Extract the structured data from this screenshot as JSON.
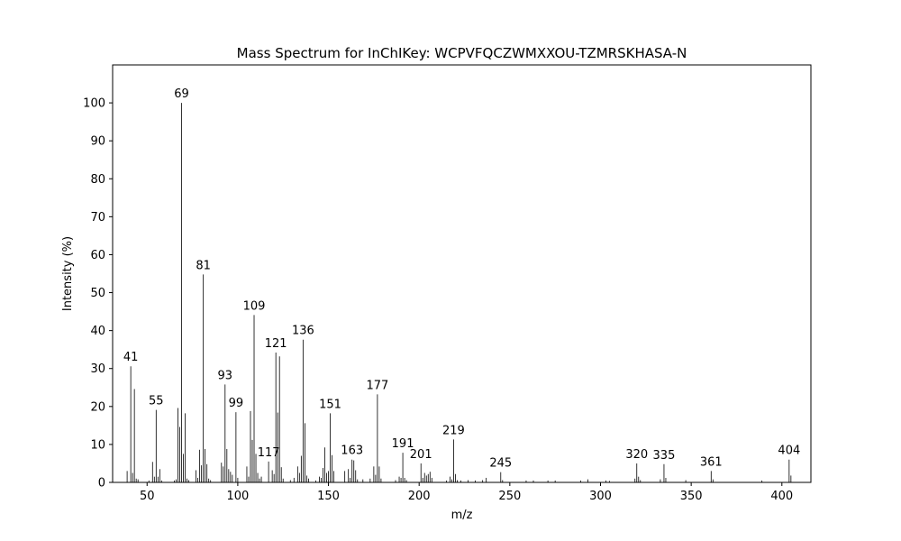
{
  "chart_data": {
    "type": "bar",
    "title": "Mass Spectrum for InChIKey: WCPVFQCZWMXXOU-TZMRSKHASA-N",
    "xlabel": "m/z",
    "ylabel": "Intensity (%)",
    "xlim": [
      31,
      416
    ],
    "ylim": [
      0,
      110
    ],
    "xticks": [
      50,
      100,
      150,
      200,
      250,
      300,
      350,
      400
    ],
    "yticks": [
      0,
      10,
      20,
      30,
      40,
      50,
      60,
      70,
      80,
      90,
      100
    ],
    "grid": false,
    "bar_color": "#000000",
    "peaks": [
      {
        "mz": 39,
        "intensity": 3
      },
      {
        "mz": 41,
        "intensity": 30.6,
        "label": "41"
      },
      {
        "mz": 42,
        "intensity": 2.5
      },
      {
        "mz": 43,
        "intensity": 24.6
      },
      {
        "mz": 44,
        "intensity": 1
      },
      {
        "mz": 45,
        "intensity": 0.8
      },
      {
        "mz": 51,
        "intensity": 0.5
      },
      {
        "mz": 53,
        "intensity": 5.4
      },
      {
        "mz": 54,
        "intensity": 1.5
      },
      {
        "mz": 55,
        "intensity": 19.1,
        "label": "55"
      },
      {
        "mz": 56,
        "intensity": 1.5
      },
      {
        "mz": 57,
        "intensity": 3.5
      },
      {
        "mz": 58,
        "intensity": 0.5
      },
      {
        "mz": 65,
        "intensity": 0.5
      },
      {
        "mz": 66,
        "intensity": 0.8
      },
      {
        "mz": 67,
        "intensity": 19.6
      },
      {
        "mz": 68,
        "intensity": 14.6
      },
      {
        "mz": 69,
        "intensity": 100,
        "label": "69"
      },
      {
        "mz": 70,
        "intensity": 7.5
      },
      {
        "mz": 71,
        "intensity": 18.2
      },
      {
        "mz": 72,
        "intensity": 1
      },
      {
        "mz": 73,
        "intensity": 0.6
      },
      {
        "mz": 77,
        "intensity": 3.2
      },
      {
        "mz": 78,
        "intensity": 1.2
      },
      {
        "mz": 79,
        "intensity": 8.6
      },
      {
        "mz": 80,
        "intensity": 4.5
      },
      {
        "mz": 81,
        "intensity": 54.8,
        "label": "81"
      },
      {
        "mz": 82,
        "intensity": 8.8
      },
      {
        "mz": 83,
        "intensity": 4.8
      },
      {
        "mz": 84,
        "intensity": 1
      },
      {
        "mz": 85,
        "intensity": 0.6
      },
      {
        "mz": 91,
        "intensity": 5.2
      },
      {
        "mz": 92,
        "intensity": 4.2
      },
      {
        "mz": 93,
        "intensity": 25.8,
        "label": "93"
      },
      {
        "mz": 94,
        "intensity": 8.8
      },
      {
        "mz": 95,
        "intensity": 3.5
      },
      {
        "mz": 96,
        "intensity": 2.8
      },
      {
        "mz": 97,
        "intensity": 2
      },
      {
        "mz": 99,
        "intensity": 18.5,
        "label": "99"
      },
      {
        "mz": 100,
        "intensity": 1.2
      },
      {
        "mz": 105,
        "intensity": 4.2
      },
      {
        "mz": 106,
        "intensity": 1.5
      },
      {
        "mz": 107,
        "intensity": 18.8
      },
      {
        "mz": 108,
        "intensity": 11.2
      },
      {
        "mz": 109,
        "intensity": 44.1,
        "label": "109"
      },
      {
        "mz": 110,
        "intensity": 7.5
      },
      {
        "mz": 111,
        "intensity": 2.5
      },
      {
        "mz": 112,
        "intensity": 1
      },
      {
        "mz": 113,
        "intensity": 1.5
      },
      {
        "mz": 117,
        "intensity": 5.5,
        "label": "117"
      },
      {
        "mz": 119,
        "intensity": 3.2
      },
      {
        "mz": 120,
        "intensity": 2.2
      },
      {
        "mz": 121,
        "intensity": 34.2,
        "label": "121"
      },
      {
        "mz": 122,
        "intensity": 18.4
      },
      {
        "mz": 123,
        "intensity": 33.2
      },
      {
        "mz": 124,
        "intensity": 4
      },
      {
        "mz": 125,
        "intensity": 1
      },
      {
        "mz": 129,
        "intensity": 0.6
      },
      {
        "mz": 131,
        "intensity": 1.2
      },
      {
        "mz": 133,
        "intensity": 4.2
      },
      {
        "mz": 134,
        "intensity": 2.5
      },
      {
        "mz": 135,
        "intensity": 7
      },
      {
        "mz": 136,
        "intensity": 37.6,
        "label": "136"
      },
      {
        "mz": 137,
        "intensity": 15.6
      },
      {
        "mz": 138,
        "intensity": 1.8
      },
      {
        "mz": 139,
        "intensity": 1
      },
      {
        "mz": 143,
        "intensity": 0.5
      },
      {
        "mz": 145,
        "intensity": 1.5
      },
      {
        "mz": 146,
        "intensity": 1.2
      },
      {
        "mz": 147,
        "intensity": 3.8
      },
      {
        "mz": 148,
        "intensity": 9.2
      },
      {
        "mz": 149,
        "intensity": 2.5
      },
      {
        "mz": 150,
        "intensity": 3
      },
      {
        "mz": 151,
        "intensity": 18.2,
        "label": "151"
      },
      {
        "mz": 152,
        "intensity": 7.2
      },
      {
        "mz": 153,
        "intensity": 3
      },
      {
        "mz": 159,
        "intensity": 3
      },
      {
        "mz": 161,
        "intensity": 3.5
      },
      {
        "mz": 162,
        "intensity": 1.2
      },
      {
        "mz": 163,
        "intensity": 6,
        "label": "163"
      },
      {
        "mz": 164,
        "intensity": 5.8
      },
      {
        "mz": 165,
        "intensity": 3.2
      },
      {
        "mz": 166,
        "intensity": 0.8
      },
      {
        "mz": 169,
        "intensity": 0.8
      },
      {
        "mz": 173,
        "intensity": 1
      },
      {
        "mz": 175,
        "intensity": 4.2
      },
      {
        "mz": 176,
        "intensity": 2
      },
      {
        "mz": 177,
        "intensity": 23.2,
        "label": "177"
      },
      {
        "mz": 178,
        "intensity": 4.2
      },
      {
        "mz": 179,
        "intensity": 1
      },
      {
        "mz": 187,
        "intensity": 0.6
      },
      {
        "mz": 189,
        "intensity": 1.5
      },
      {
        "mz": 190,
        "intensity": 1.2
      },
      {
        "mz": 191,
        "intensity": 7.8,
        "label": "191"
      },
      {
        "mz": 192,
        "intensity": 1.2
      },
      {
        "mz": 193,
        "intensity": 0.6
      },
      {
        "mz": 201,
        "intensity": 5,
        "label": "201"
      },
      {
        "mz": 202,
        "intensity": 1.2
      },
      {
        "mz": 203,
        "intensity": 2.5
      },
      {
        "mz": 204,
        "intensity": 1.8
      },
      {
        "mz": 205,
        "intensity": 2.2
      },
      {
        "mz": 206,
        "intensity": 2.8
      },
      {
        "mz": 207,
        "intensity": 1.2
      },
      {
        "mz": 215,
        "intensity": 0.5
      },
      {
        "mz": 217,
        "intensity": 1.5
      },
      {
        "mz": 218,
        "intensity": 0.8
      },
      {
        "mz": 219,
        "intensity": 11.3,
        "label": "219"
      },
      {
        "mz": 220,
        "intensity": 2.2
      },
      {
        "mz": 221,
        "intensity": 0.6
      },
      {
        "mz": 223,
        "intensity": 0.5
      },
      {
        "mz": 227,
        "intensity": 0.6
      },
      {
        "mz": 231,
        "intensity": 0.5
      },
      {
        "mz": 235,
        "intensity": 0.6
      },
      {
        "mz": 237,
        "intensity": 1.2
      },
      {
        "mz": 245,
        "intensity": 2.7,
        "label": "245"
      },
      {
        "mz": 246,
        "intensity": 0.6
      },
      {
        "mz": 259,
        "intensity": 0.5
      },
      {
        "mz": 263,
        "intensity": 0.5
      },
      {
        "mz": 271,
        "intensity": 0.5
      },
      {
        "mz": 275,
        "intensity": 0.5
      },
      {
        "mz": 289,
        "intensity": 0.5
      },
      {
        "mz": 293,
        "intensity": 0.8
      },
      {
        "mz": 303,
        "intensity": 0.5
      },
      {
        "mz": 305,
        "intensity": 0.4
      },
      {
        "mz": 319,
        "intensity": 1
      },
      {
        "mz": 320,
        "intensity": 5,
        "label": "320"
      },
      {
        "mz": 321,
        "intensity": 1.5
      },
      {
        "mz": 322,
        "intensity": 0.6
      },
      {
        "mz": 333,
        "intensity": 0.8
      },
      {
        "mz": 335,
        "intensity": 4.8,
        "label": "335"
      },
      {
        "mz": 336,
        "intensity": 1.2
      },
      {
        "mz": 347,
        "intensity": 0.6
      },
      {
        "mz": 361,
        "intensity": 3,
        "label": "361"
      },
      {
        "mz": 362,
        "intensity": 0.8
      },
      {
        "mz": 389,
        "intensity": 0.5
      },
      {
        "mz": 404,
        "intensity": 6,
        "label": "404"
      },
      {
        "mz": 405,
        "intensity": 1.8
      }
    ]
  }
}
